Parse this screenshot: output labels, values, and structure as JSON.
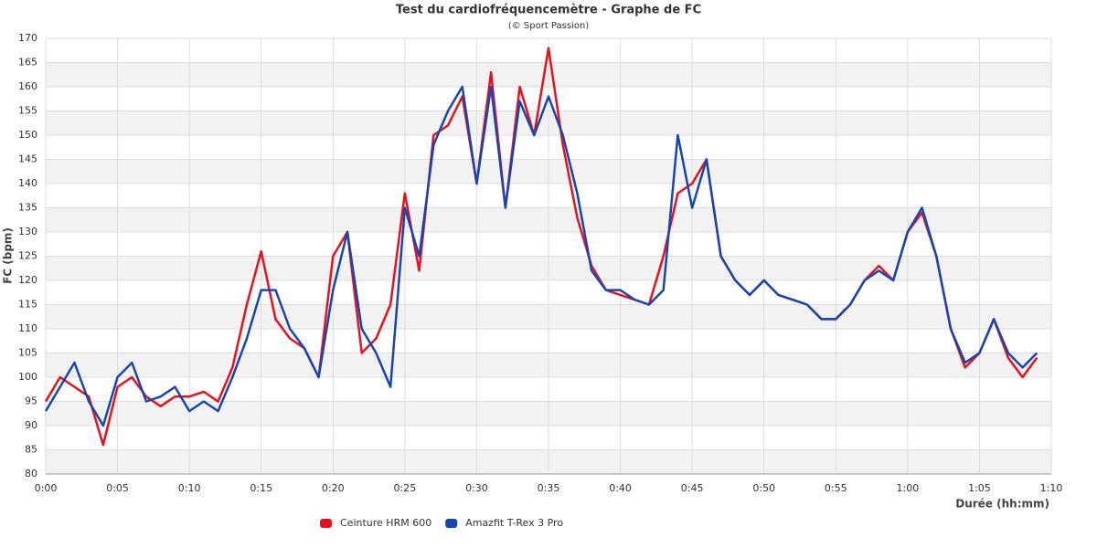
{
  "chart_data": {
    "type": "line",
    "title": "Test du cardiofréquencemètre - Graphe de FC",
    "subtitle": "(© Sport Passion)",
    "x_label": "Durée (hh:mm)",
    "y_label": "FC (bpm)",
    "x": [
      0,
      1,
      2,
      3,
      4,
      5,
      6,
      7,
      8,
      9,
      10,
      11,
      12,
      13,
      14,
      15,
      16,
      17,
      18,
      19,
      20,
      21,
      22,
      23,
      24,
      25,
      26,
      27,
      28,
      29,
      30,
      31,
      32,
      33,
      34,
      35,
      36,
      37,
      38,
      39,
      40,
      41,
      42,
      43,
      44,
      45,
      46,
      47,
      48,
      49,
      50,
      51,
      52,
      53,
      54,
      55,
      56,
      57,
      58,
      59,
      60,
      61,
      62,
      63,
      64,
      65,
      66,
      67,
      68,
      69
    ],
    "series": [
      {
        "name": "Ceinture HRM 600",
        "color": "#e8101c",
        "values": [
          95,
          100,
          98,
          96,
          86,
          98,
          100,
          96,
          94,
          96,
          96,
          97,
          95,
          102,
          115,
          126,
          112,
          108,
          106,
          100,
          125,
          130,
          105,
          108,
          115,
          138,
          122,
          150,
          152,
          158,
          140,
          163,
          135,
          160,
          150,
          168,
          148,
          133,
          123,
          118,
          117,
          116,
          115,
          125,
          138,
          140,
          145,
          125,
          120,
          117,
          120,
          117,
          116,
          115,
          112,
          112,
          115,
          120,
          123,
          120,
          130,
          134,
          125,
          110,
          102,
          105,
          112,
          104,
          100,
          104
        ]
      },
      {
        "name": "Amazfit T-Rex 3 Pro",
        "color": "#1446b4",
        "values": [
          93,
          98,
          103,
          95,
          90,
          100,
          103,
          95,
          96,
          98,
          93,
          95,
          93,
          100,
          108,
          118,
          118,
          110,
          106,
          100,
          118,
          130,
          110,
          105,
          98,
          135,
          125,
          148,
          155,
          160,
          140,
          160,
          135,
          157,
          150,
          158,
          150,
          138,
          122,
          118,
          118,
          116,
          115,
          118,
          150,
          135,
          145,
          125,
          120,
          117,
          120,
          117,
          116,
          115,
          112,
          112,
          115,
          120,
          122,
          120,
          130,
          135,
          125,
          110,
          103,
          105,
          112,
          105,
          102,
          105
        ]
      }
    ],
    "xlim": [
      0,
      70
    ],
    "xticks": [
      {
        "value": 0,
        "label": "0:00"
      },
      {
        "value": 5,
        "label": "0:05"
      },
      {
        "value": 10,
        "label": "0:10"
      },
      {
        "value": 15,
        "label": "0:15"
      },
      {
        "value": 20,
        "label": "0:20"
      },
      {
        "value": 25,
        "label": "0:25"
      },
      {
        "value": 30,
        "label": "0:30"
      },
      {
        "value": 35,
        "label": "0:35"
      },
      {
        "value": 40,
        "label": "0:40"
      },
      {
        "value": 45,
        "label": "0:45"
      },
      {
        "value": 50,
        "label": "0:50"
      },
      {
        "value": 55,
        "label": "0:55"
      },
      {
        "value": 60,
        "label": "1:00"
      },
      {
        "value": 65,
        "label": "1:05"
      },
      {
        "value": 70,
        "label": "1:10"
      }
    ],
    "ylim": [
      80,
      170
    ],
    "yticks": [
      80,
      85,
      90,
      95,
      100,
      105,
      110,
      115,
      120,
      125,
      130,
      135,
      140,
      145,
      150,
      155,
      160,
      165,
      170
    ],
    "grid": true,
    "legend": "bottom"
  }
}
